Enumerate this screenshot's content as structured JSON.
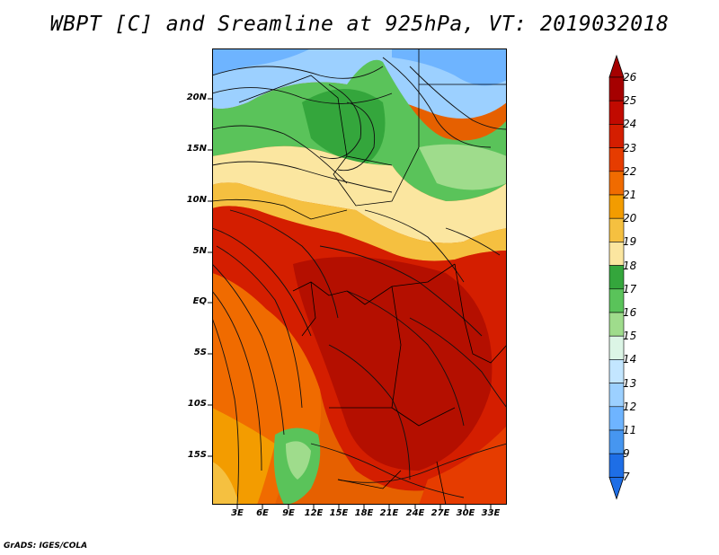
{
  "title": "WBPT [C] and Sreamline at 925hPa, VT: 2019032018",
  "credit": "GrADS: IGES/COLA",
  "y_axis_labels": [
    "20N",
    "15N",
    "10N",
    "5N",
    "EQ",
    "5S",
    "10S",
    "15S"
  ],
  "x_axis_labels": [
    "3E",
    "6E",
    "9E",
    "12E",
    "15E",
    "18E",
    "21E",
    "24E",
    "27E",
    "30E",
    "33E"
  ],
  "colorbar": {
    "labels": [
      "26",
      "25",
      "24",
      "23",
      "22",
      "21",
      "20",
      "19",
      "18",
      "17",
      "16",
      "15",
      "14",
      "13",
      "12",
      "11",
      "9",
      "7"
    ],
    "colors": [
      "#a50000",
      "#c10a00",
      "#d41e00",
      "#e63c00",
      "#f06b00",
      "#f39c00",
      "#f5c040",
      "#fbe6a0",
      "#34a63c",
      "#5ac35a",
      "#9fdc8c",
      "#dcf5e6",
      "#c3e6ff",
      "#9cd0ff",
      "#6eb4ff",
      "#4696f0",
      "#1e6ee6"
    ]
  },
  "map_colors": {
    "deep_red": "#b40f00",
    "red": "#d41e00",
    "orange_red": "#e63c00",
    "orange": "#f06b00",
    "amber": "#f39c00",
    "light_orange": "#f5c040",
    "pale_yellow": "#fbe6a0",
    "green": "#5ac35a",
    "light_green": "#9fdc8c",
    "pale_blue": "#c3e6ff",
    "blue": "#6eb4ff"
  }
}
